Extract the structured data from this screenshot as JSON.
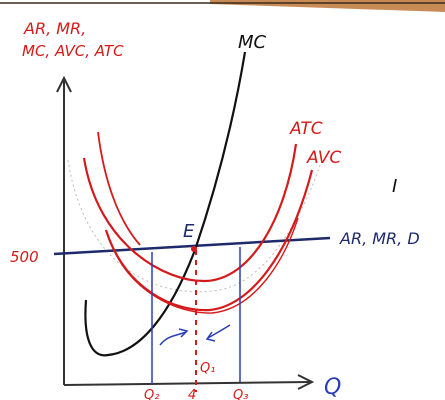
{
  "axes": {
    "y_label_lines": [
      "AR, MR,",
      "MC, AVC, ATC"
    ],
    "x_label": "Q"
  },
  "curves": {
    "mc": "MC",
    "atc": "ATC",
    "avc": "AVC",
    "demand": "AR, MR, D"
  },
  "point_label": "E",
  "price_label": "500",
  "quantity_labels": {
    "left": "Q₂",
    "mid": "Q₁",
    "right": "Q₃",
    "under_mid": "4"
  },
  "stray_mark": "I",
  "colors": {
    "red": "#d41a1a",
    "black": "#111111",
    "navy": "#1d2a6b",
    "blue": "#2a3fb5",
    "top_strip": "#b5641e"
  }
}
